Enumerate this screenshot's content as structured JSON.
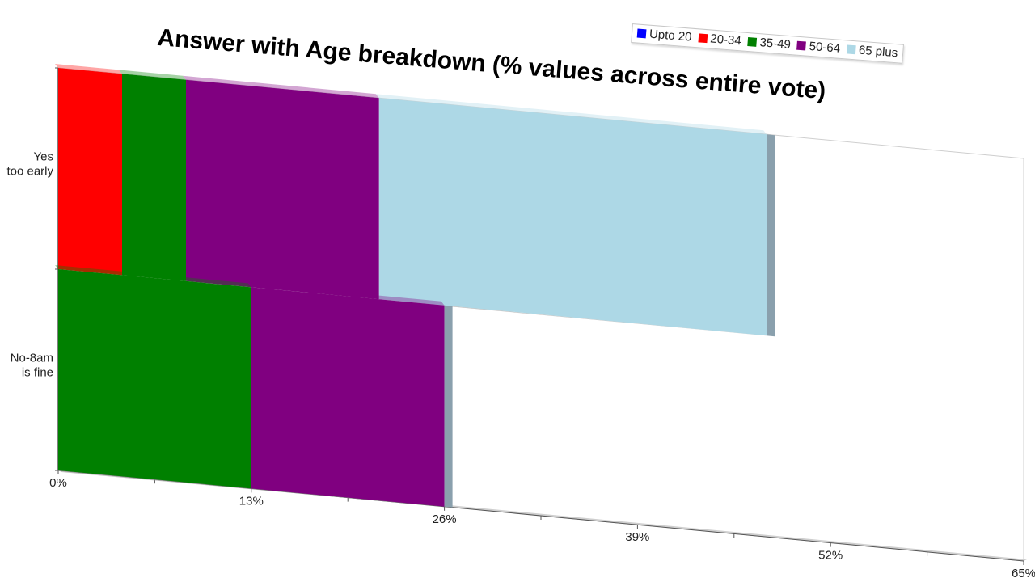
{
  "chart_data": {
    "type": "bar",
    "orientation": "horizontal",
    "stacked": true,
    "title": "Answer with Age breakdown (% values across entire vote)",
    "categories": [
      [
        "Yes",
        "too early"
      ],
      [
        "No-8am",
        "is fine"
      ]
    ],
    "x_ticks": [
      "0%",
      "13%",
      "26%",
      "39%",
      "52%",
      "65%"
    ],
    "xlim": [
      0,
      65
    ],
    "legend_position": "top-right",
    "series": [
      {
        "name": "Upto 20",
        "color": "#0000ff",
        "values": [
          0,
          0
        ]
      },
      {
        "name": "20-34",
        "color": "#ff0000",
        "values": [
          4.3,
          0
        ]
      },
      {
        "name": "35-49",
        "color": "#008000",
        "values": [
          4.3,
          13.0
        ]
      },
      {
        "name": "50-64",
        "color": "#800080",
        "values": [
          13.0,
          13.0
        ]
      },
      {
        "name": "65 plus",
        "color": "#add8e6",
        "values": [
          26.1,
          0
        ]
      }
    ]
  }
}
